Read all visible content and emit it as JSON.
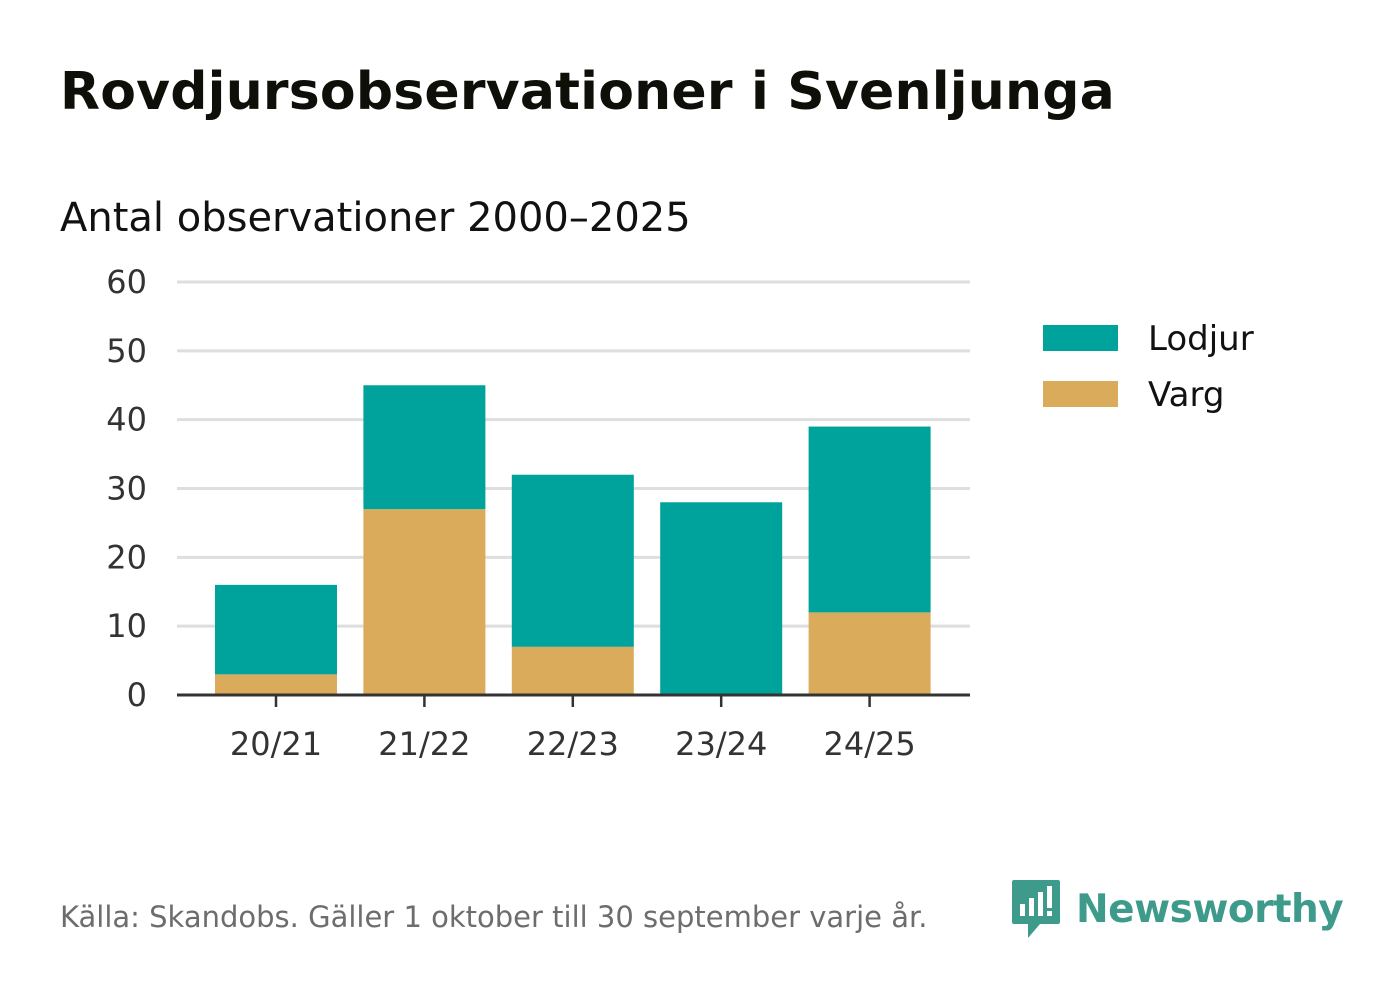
{
  "title": "Rovdjursobservationer i Svenljunga",
  "chart_data": {
    "type": "bar",
    "stacked": true,
    "title": "Rovdjursobservationer i Svenljunga",
    "subtitle": "Antal observationer 2000–2025",
    "xlabel": "",
    "ylabel": "",
    "categories": [
      "20/21",
      "21/22",
      "22/23",
      "23/24",
      "24/25"
    ],
    "series": [
      {
        "name": "Varg",
        "color": "#d9ab5b",
        "values": [
          3,
          27,
          7,
          0,
          12
        ]
      },
      {
        "name": "Lodjur",
        "color": "#00a39b",
        "values": [
          13,
          18,
          25,
          28,
          27
        ]
      }
    ],
    "legend": [
      "Lodjur",
      "Varg"
    ],
    "legend_position": "right",
    "ylim": [
      0,
      60
    ],
    "yticks": [
      0,
      10,
      20,
      30,
      40,
      50,
      60
    ],
    "grid": true
  },
  "footer": {
    "source": "Källa: Skandobs. Gäller 1 oktober till 30 september varje år.",
    "brand": "Newsworthy"
  },
  "colors": {
    "lodjur": "#00a39b",
    "varg": "#d9ab5b",
    "grid": "#dedede",
    "axis": "#333333",
    "brand": "#3e9b8c"
  }
}
